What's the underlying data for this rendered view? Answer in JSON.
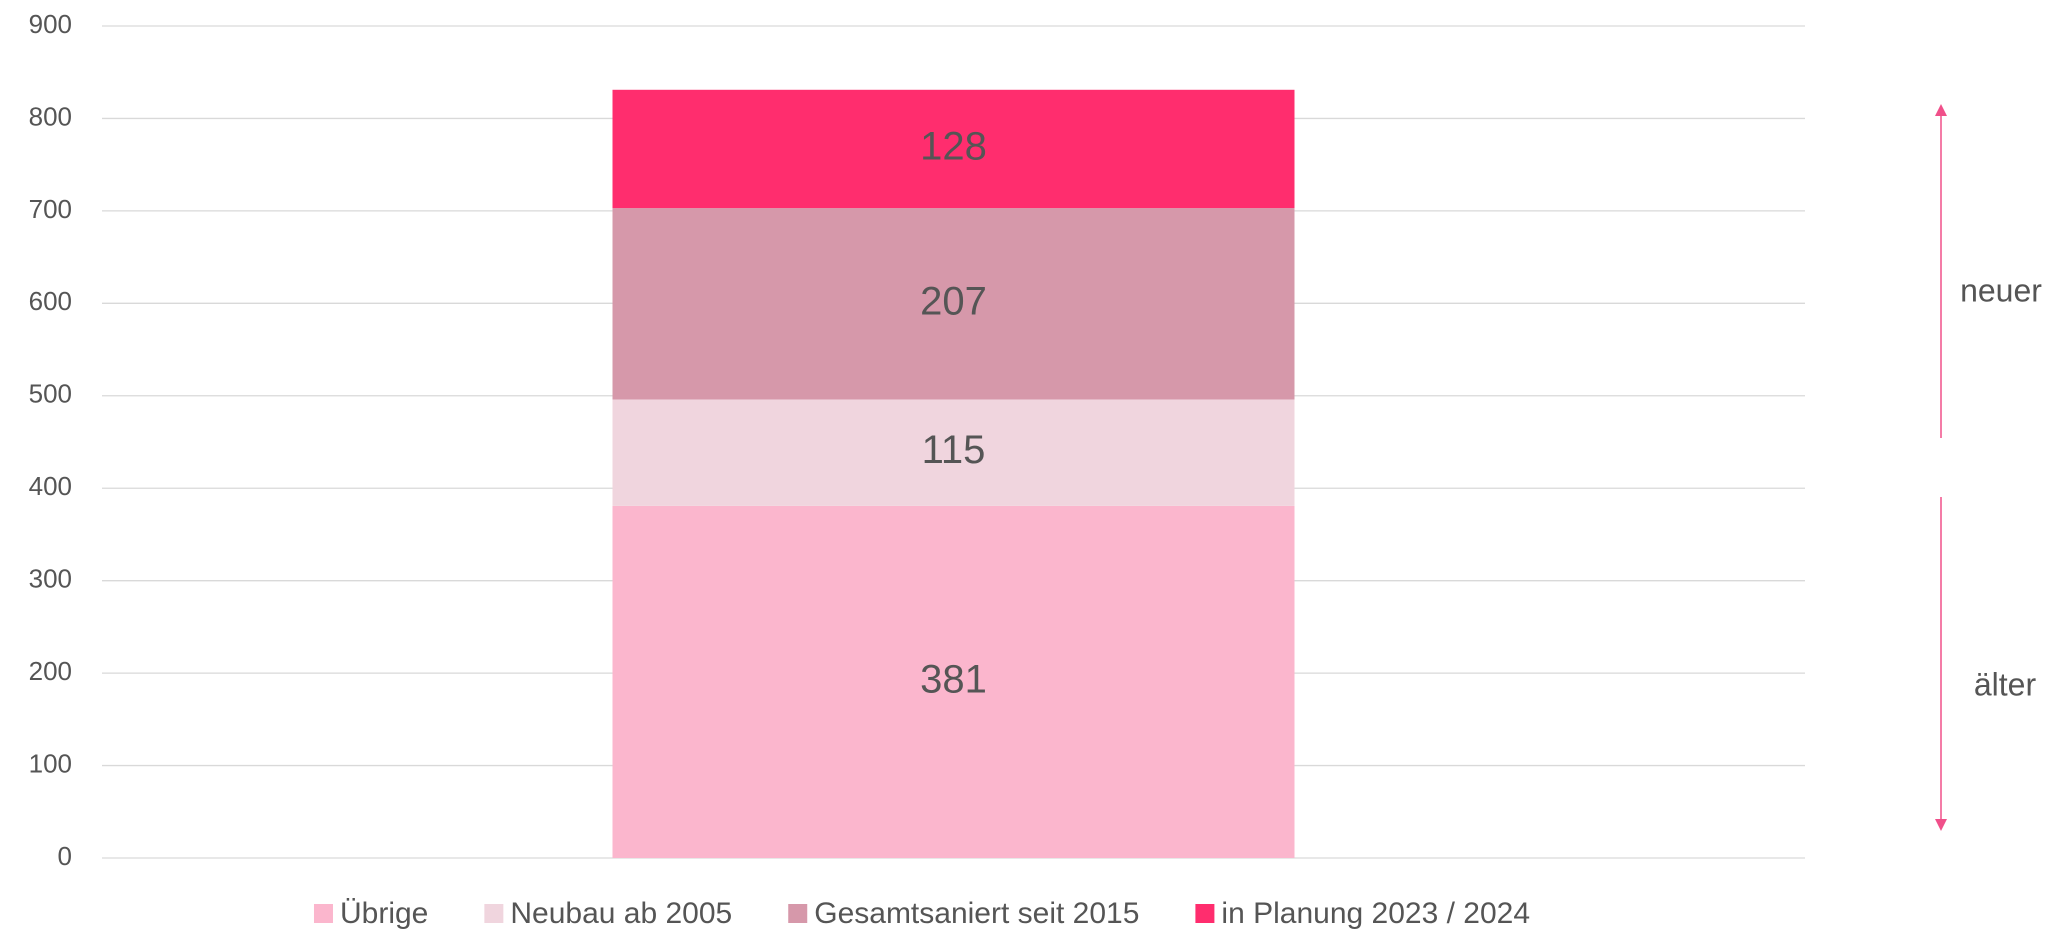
{
  "chart_data": {
    "type": "stacked_bar",
    "categories": [
      null
    ],
    "series": [
      {
        "name": "Übrige",
        "color": "#fbb6cd",
        "values": [
          381
        ]
      },
      {
        "name": "Neubau ab 2005",
        "color": "#f0d5de",
        "values": [
          115
        ]
      },
      {
        "name": "Gesamtsaniert seit 2015",
        "color": "#d698aa",
        "values": [
          207
        ]
      },
      {
        "name": "in Planung 2023 / 2024",
        "color": "#ff2d6e",
        "values": [
          128
        ]
      }
    ],
    "ylim": [
      0,
      900
    ],
    "yticks": [
      0,
      100,
      200,
      300,
      400,
      500,
      600,
      700,
      800,
      900
    ],
    "grid": true,
    "legend": "bottom",
    "annotations": [
      "neuer",
      "älter"
    ]
  }
}
